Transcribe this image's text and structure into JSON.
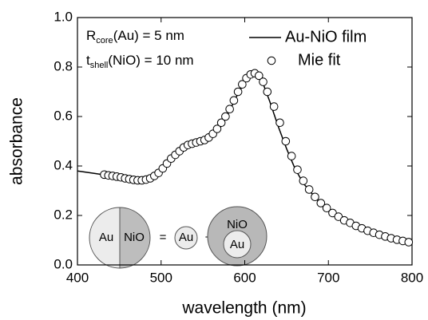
{
  "chart_data": {
    "type": "line",
    "xlabel": "wavelength (nm)",
    "ylabel": "absorbance",
    "xlim": [
      400,
      800
    ],
    "ylim": [
      0,
      1
    ],
    "xticks": [
      400,
      500,
      600,
      700,
      800
    ],
    "yticks": [
      {
        "value": 0,
        "label": "0.0"
      },
      0.2,
      0.4,
      0.6,
      0.8,
      {
        "value": 1,
        "label": "1.0"
      }
    ],
    "legend": "upper right",
    "series": [
      {
        "name": "Au-NiO film",
        "style": "line",
        "color": "#000000",
        "x": [
          400,
          420,
          440,
          460,
          480,
          490,
          500,
          510,
          520,
          530,
          540,
          550,
          560,
          570,
          580,
          590,
          600,
          605,
          610,
          615,
          620,
          630,
          640,
          650,
          660,
          670,
          680,
          690,
          700,
          720,
          740,
          760,
          780,
          800
        ],
        "values": [
          0.38,
          0.37,
          0.36,
          0.345,
          0.34,
          0.345,
          0.37,
          0.41,
          0.45,
          0.48,
          0.49,
          0.5,
          0.51,
          0.55,
          0.61,
          0.68,
          0.74,
          0.76,
          0.77,
          0.77,
          0.75,
          0.66,
          0.56,
          0.47,
          0.39,
          0.33,
          0.29,
          0.25,
          0.22,
          0.18,
          0.15,
          0.13,
          0.11,
          0.09
        ]
      },
      {
        "name": "Mie fit",
        "style": "markers",
        "color": "#000000",
        "x": [
          432,
          437,
          442,
          447,
          452,
          457,
          462,
          467,
          472,
          477,
          482,
          487,
          492,
          497,
          502,
          507,
          512,
          517,
          522,
          527,
          532,
          537,
          542,
          547,
          552,
          557,
          562,
          567,
          572,
          577,
          582,
          587,
          592,
          597,
          602,
          607,
          612,
          617,
          622,
          627,
          635,
          642,
          649,
          656,
          663,
          670,
          677,
          684,
          691,
          698,
          705,
          712,
          719,
          726,
          733,
          740,
          747,
          754,
          761,
          768,
          775,
          782,
          789,
          796
        ],
        "values": [
          0.365,
          0.362,
          0.36,
          0.357,
          0.354,
          0.35,
          0.347,
          0.344,
          0.342,
          0.342,
          0.345,
          0.35,
          0.36,
          0.372,
          0.39,
          0.41,
          0.43,
          0.445,
          0.46,
          0.475,
          0.485,
          0.49,
          0.495,
          0.5,
          0.505,
          0.515,
          0.53,
          0.55,
          0.575,
          0.6,
          0.63,
          0.665,
          0.7,
          0.73,
          0.755,
          0.77,
          0.775,
          0.765,
          0.74,
          0.7,
          0.64,
          0.575,
          0.5,
          0.44,
          0.385,
          0.34,
          0.305,
          0.275,
          0.25,
          0.23,
          0.21,
          0.195,
          0.18,
          0.17,
          0.158,
          0.148,
          0.138,
          0.13,
          0.122,
          0.115,
          0.108,
          0.102,
          0.097,
          0.092
        ]
      }
    ],
    "annotations": [
      {
        "text": "R",
        "sub": "core",
        "rest": "(Au) = 5 nm"
      },
      {
        "text": "t",
        "sub": "shell",
        "rest": "(NiO) = 10 nm"
      }
    ],
    "inset": {
      "left_core": "Au",
      "left_shell": "NiO",
      "equals": "=",
      "core": "Au",
      "plus": "+",
      "shell": "NiO",
      "shell_core": "Au"
    }
  }
}
